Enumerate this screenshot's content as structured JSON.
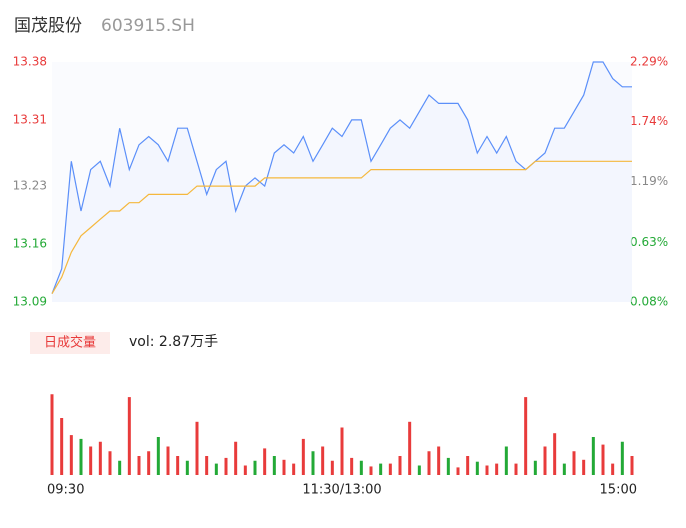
{
  "header": {
    "name": "国茂股份",
    "code": "603915.SH"
  },
  "chart_data": [
    {
      "type": "line",
      "xlim": [
        0,
        240
      ],
      "x": [
        0,
        4,
        8,
        12,
        16,
        20,
        24,
        28,
        32,
        36,
        40,
        44,
        48,
        52,
        56,
        60,
        64,
        68,
        72,
        76,
        80,
        84,
        88,
        92,
        96,
        100,
        104,
        108,
        112,
        116,
        120,
        124,
        128,
        132,
        136,
        140,
        144,
        148,
        152,
        156,
        160,
        164,
        168,
        172,
        176,
        180,
        184,
        188,
        192,
        196,
        200,
        204,
        208,
        212,
        216,
        220,
        224,
        228,
        232,
        236,
        240
      ],
      "ylim": [
        13.09,
        13.38
      ],
      "yticks": [
        {
          "value": 13.09,
          "label": "13.09"
        },
        13.16,
        13.23,
        13.31,
        13.38
      ],
      "y2lim": [
        0.08,
        2.29
      ],
      "y2ticks": [
        {
          "value": 0.08,
          "label": "0.08%"
        },
        {
          "value": 0.63,
          "label": "0.63%"
        },
        {
          "value": 1.19,
          "label": "1.19%"
        },
        {
          "value": 1.74,
          "label": "1.74%"
        },
        {
          "value": 2.29,
          "label": "2.29%"
        }
      ],
      "series": [
        {
          "color": "#5b8ff9",
          "values": [
            13.1,
            13.13,
            13.26,
            13.2,
            13.25,
            13.26,
            13.23,
            13.3,
            13.25,
            13.28,
            13.29,
            13.28,
            13.26,
            13.3,
            13.3,
            13.26,
            13.22,
            13.25,
            13.26,
            13.2,
            13.23,
            13.24,
            13.23,
            13.27,
            13.28,
            13.27,
            13.29,
            13.26,
            13.28,
            13.3,
            13.29,
            13.31,
            13.31,
            13.26,
            13.28,
            13.3,
            13.31,
            13.3,
            13.32,
            13.34,
            13.33,
            13.33,
            13.33,
            13.31,
            13.27,
            13.29,
            13.27,
            13.29,
            13.26,
            13.25,
            13.26,
            13.27,
            13.3,
            13.3,
            13.32,
            13.34,
            13.38,
            13.38,
            13.36,
            13.35,
            13.35
          ]
        },
        {
          "color": "#f5b83d",
          "values": [
            13.1,
            13.12,
            13.15,
            13.17,
            13.18,
            13.19,
            13.2,
            13.2,
            13.21,
            13.21,
            13.22,
            13.22,
            13.22,
            13.22,
            13.22,
            13.23,
            13.23,
            13.23,
            13.23,
            13.23,
            13.23,
            13.23,
            13.24,
            13.24,
            13.24,
            13.24,
            13.24,
            13.24,
            13.24,
            13.24,
            13.24,
            13.24,
            13.24,
            13.25,
            13.25,
            13.25,
            13.25,
            13.25,
            13.25,
            13.25,
            13.25,
            13.25,
            13.25,
            13.25,
            13.25,
            13.25,
            13.25,
            13.25,
            13.25,
            13.25,
            13.26,
            13.26,
            13.26,
            13.26,
            13.26,
            13.26,
            13.26,
            13.26,
            13.26,
            13.26,
            13.26
          ]
        }
      ]
    },
    {
      "type": "bar",
      "button": "日成交量",
      "label": "vol: 2.87万手",
      "xlim": [
        0,
        240
      ],
      "xticks": [
        {
          "value": 0,
          "label": "09:30"
        },
        {
          "value": 120,
          "label": "11:30/13:00"
        },
        {
          "value": 240,
          "label": "15:00"
        }
      ],
      "ylim": [
        0,
        1000
      ],
      "x": [
        0,
        4,
        8,
        12,
        16,
        20,
        24,
        28,
        32,
        36,
        40,
        44,
        48,
        52,
        56,
        60,
        64,
        68,
        72,
        76,
        80,
        84,
        88,
        92,
        96,
        100,
        104,
        108,
        112,
        116,
        120,
        124,
        128,
        132,
        136,
        140,
        144,
        148,
        152,
        156,
        160,
        164,
        168,
        172,
        176,
        180,
        184,
        188,
        192,
        196,
        200,
        204,
        208,
        212,
        216,
        220,
        224,
        228,
        232,
        236,
        240
      ],
      "values": [
        850,
        600,
        420,
        380,
        300,
        350,
        250,
        150,
        820,
        200,
        250,
        400,
        300,
        200,
        150,
        560,
        200,
        120,
        180,
        350,
        100,
        150,
        280,
        200,
        160,
        120,
        380,
        250,
        300,
        150,
        500,
        180,
        150,
        90,
        120,
        120,
        200,
        560,
        100,
        250,
        300,
        180,
        80,
        200,
        140,
        100,
        120,
        300,
        120,
        820,
        150,
        300,
        440,
        120,
        250,
        160,
        400,
        320,
        120,
        350,
        200
      ],
      "colors": [
        "#e83b3b",
        "#e83b3b",
        "#e83b3b",
        "#23a936",
        "#e83b3b",
        "#e83b3b",
        "#e83b3b",
        "#23a936",
        "#e83b3b",
        "#e83b3b",
        "#e83b3b",
        "#23a936",
        "#e83b3b",
        "#e83b3b",
        "#23a936",
        "#e83b3b",
        "#e83b3b",
        "#23a936",
        "#e83b3b",
        "#e83b3b",
        "#e83b3b",
        "#23a936",
        "#e83b3b",
        "#23a936",
        "#e83b3b",
        "#e83b3b",
        "#e83b3b",
        "#23a936",
        "#e83b3b",
        "#e83b3b",
        "#e83b3b",
        "#e83b3b",
        "#23a936",
        "#e83b3b",
        "#23a936",
        "#e83b3b",
        "#e83b3b",
        "#e83b3b",
        "#23a936",
        "#e83b3b",
        "#e83b3b",
        "#23a936",
        "#e83b3b",
        "#e83b3b",
        "#23a936",
        "#e83b3b",
        "#e83b3b",
        "#23a936",
        "#e83b3b",
        "#e83b3b",
        "#23a936",
        "#e83b3b",
        "#e83b3b",
        "#23a936",
        "#e83b3b",
        "#e83b3b",
        "#23a936",
        "#e83b3b",
        "#e83b3b",
        "#23a936",
        "#e83b3b"
      ]
    }
  ]
}
